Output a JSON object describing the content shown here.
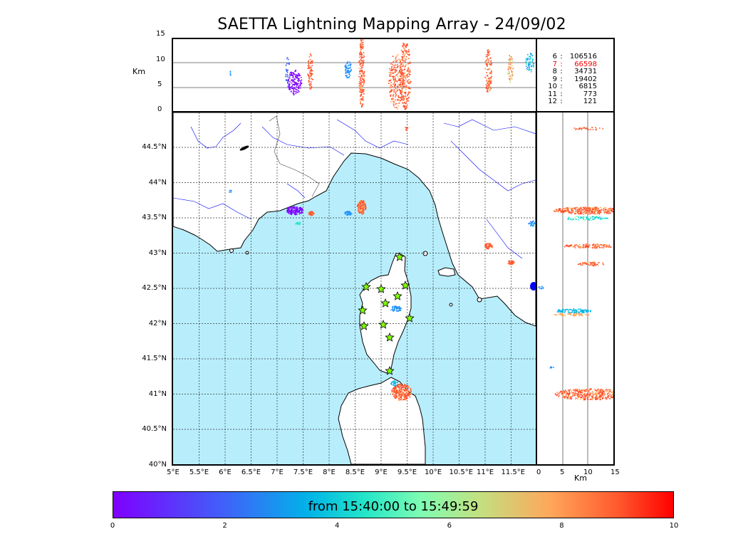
{
  "title": "SAETTA Lightning Mapping Array - 24/09/02",
  "altitude_axis": {
    "unit_label": "Km",
    "ticks": [
      "15",
      "10",
      "5",
      "0"
    ]
  },
  "side_axis": {
    "unit_label": "Km",
    "ticks": [
      "0",
      "5",
      "10",
      "15"
    ]
  },
  "lon_ticks": [
    "5°E",
    "5.5°E",
    "6°E",
    "6.5°E",
    "7°E",
    "7.5°E",
    "8°E",
    "8.5°E",
    "9°E",
    "9.5°E",
    "10°E",
    "10.5°E",
    "11°E",
    "11.5°E"
  ],
  "lat_ticks": [
    "44.5°N",
    "44°N",
    "43.5°N",
    "43°N",
    "42.5°N",
    "42°N",
    "41.5°N",
    "41°N",
    "40.5°N",
    "40°N"
  ],
  "station_counts": [
    {
      "stations": "6",
      "sep": ":",
      "count": "106516",
      "color": "#000000"
    },
    {
      "stations": "7",
      "sep": ":",
      "count": "66598",
      "color": "#ff0000"
    },
    {
      "stations": "8",
      "sep": ":",
      "count": "34731",
      "color": "#000000"
    },
    {
      "stations": "9",
      "sep": ":",
      "count": "19402",
      "color": "#000000"
    },
    {
      "stations": "10",
      "sep": ":",
      "count": "6815",
      "color": "#000000"
    },
    {
      "stations": "11",
      "sep": ":",
      "count": "773",
      "color": "#000000"
    },
    {
      "stations": "12",
      "sep": ":",
      "count": "121",
      "color": "#000000"
    }
  ],
  "colorbar": {
    "label": "from 15:40:00 to 15:49:59",
    "ticks": [
      "0",
      "2",
      "4",
      "6",
      "8",
      "10"
    ],
    "min": 0,
    "max": 10
  },
  "colors": {
    "sea": "#b8eefc",
    "coast": "#000000",
    "rivers": "#0000ff",
    "station_marker": "#7fff00"
  }
}
